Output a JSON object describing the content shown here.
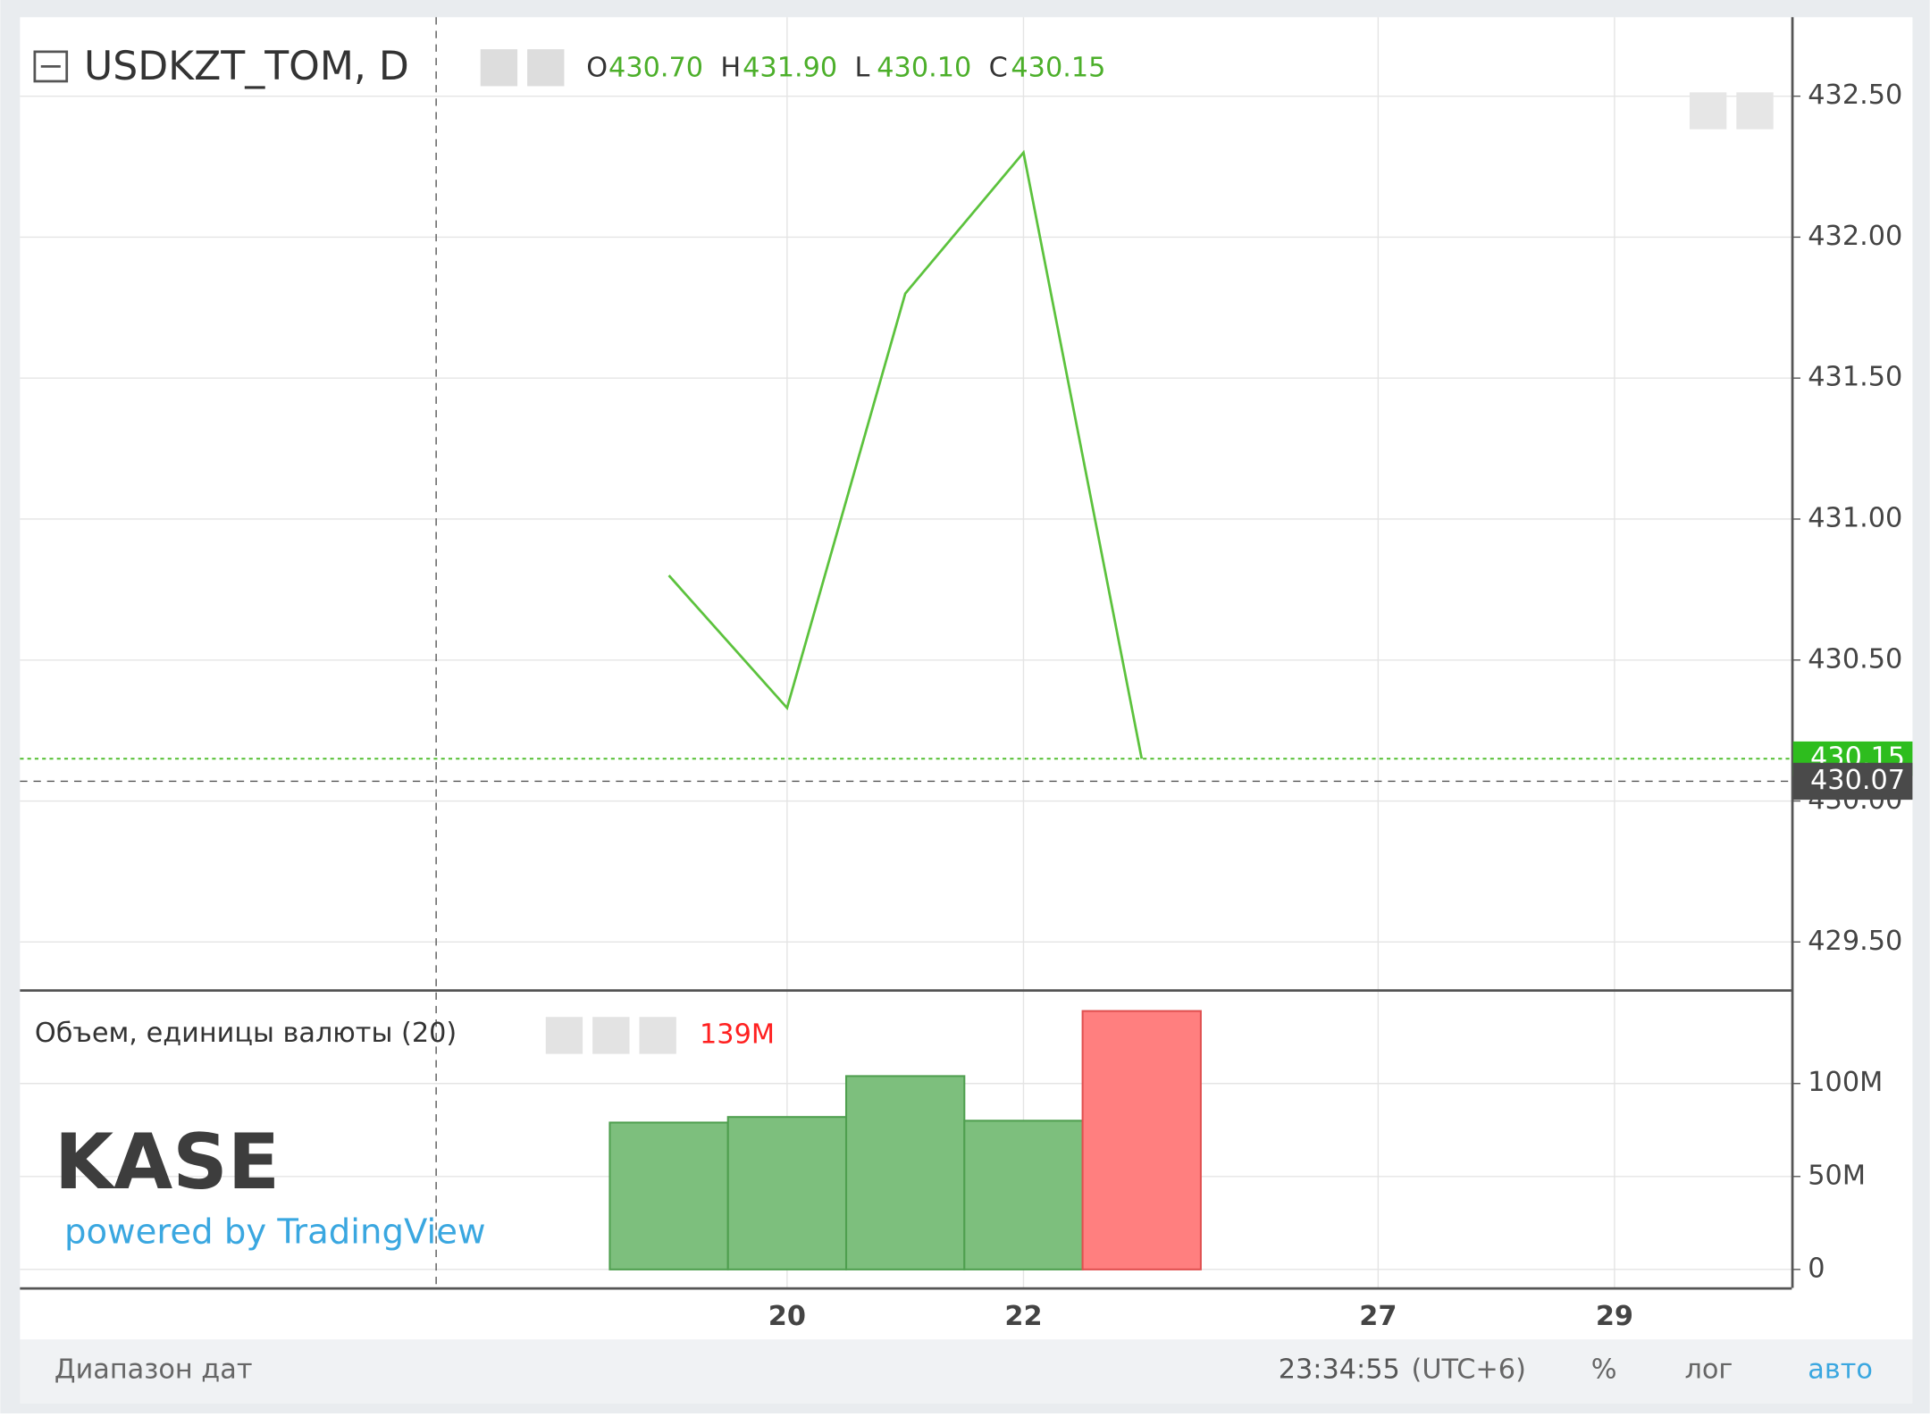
{
  "chart_data": [
    {
      "type": "line",
      "title": "USDKZT_TOM, D",
      "ohlc": [
        {
          "key": "O",
          "text": "430.70"
        },
        {
          "key": "H",
          "text": "431.90"
        },
        {
          "key": "L",
          "text": "430.10"
        },
        {
          "key": "C",
          "text": "430.15"
        }
      ],
      "categories": [
        null,
        "20",
        null,
        "22",
        null,
        null,
        "27",
        null,
        "29"
      ],
      "values": [
        430.8,
        430.33,
        431.8,
        432.3,
        430.15,
        null,
        null,
        null,
        null
      ],
      "color": "#5cc23d",
      "ylim": [
        429.33,
        432.78
      ],
      "yticks": [
        {
          "value": 429.5,
          "label": "429.50"
        },
        {
          "value": 430.0,
          "label": "430.00"
        },
        {
          "value": 430.5,
          "label": "430.50"
        },
        {
          "value": 431.0,
          "label": "431.00"
        },
        {
          "value": 431.5,
          "label": "431.50"
        },
        {
          "value": 432.0,
          "label": "432.00"
        },
        {
          "value": 432.5,
          "label": "432.50"
        }
      ],
      "last_price": 430.15,
      "crosshair_price": 430.07,
      "grid": true
    },
    {
      "type": "bar",
      "title": "Объем, единицы валюты (20)",
      "categories": [
        null,
        "20",
        null,
        "22",
        null,
        null,
        "27",
        null,
        "29"
      ],
      "values": [
        79000000,
        82000000,
        104000000,
        80000000,
        139000000,
        null,
        null,
        null,
        null
      ],
      "value_labels": [
        null,
        null,
        null,
        null,
        "139M",
        null,
        null,
        null,
        null
      ],
      "colors": [
        "#7dbf7d",
        "#7dbf7d",
        "#7dbf7d",
        "#7dbf7d",
        "#ff7f7f",
        null,
        null,
        null,
        null
      ],
      "ylim": [
        -9900000,
        149700000
      ],
      "yticks": [
        0,
        {
          "value": 50000000,
          "label": "50M"
        },
        {
          "value": 100000000,
          "label": "100M"
        }
      ],
      "grid": true
    }
  ],
  "logo": {
    "brand": "KASE",
    "powered": "powered by TradingView"
  },
  "toolbar": {
    "range": "Диапазон дат",
    "time": "23:34:55",
    "tz": "(UTC+6)",
    "percent": "%",
    "log": "лог",
    "auto": "авто"
  }
}
